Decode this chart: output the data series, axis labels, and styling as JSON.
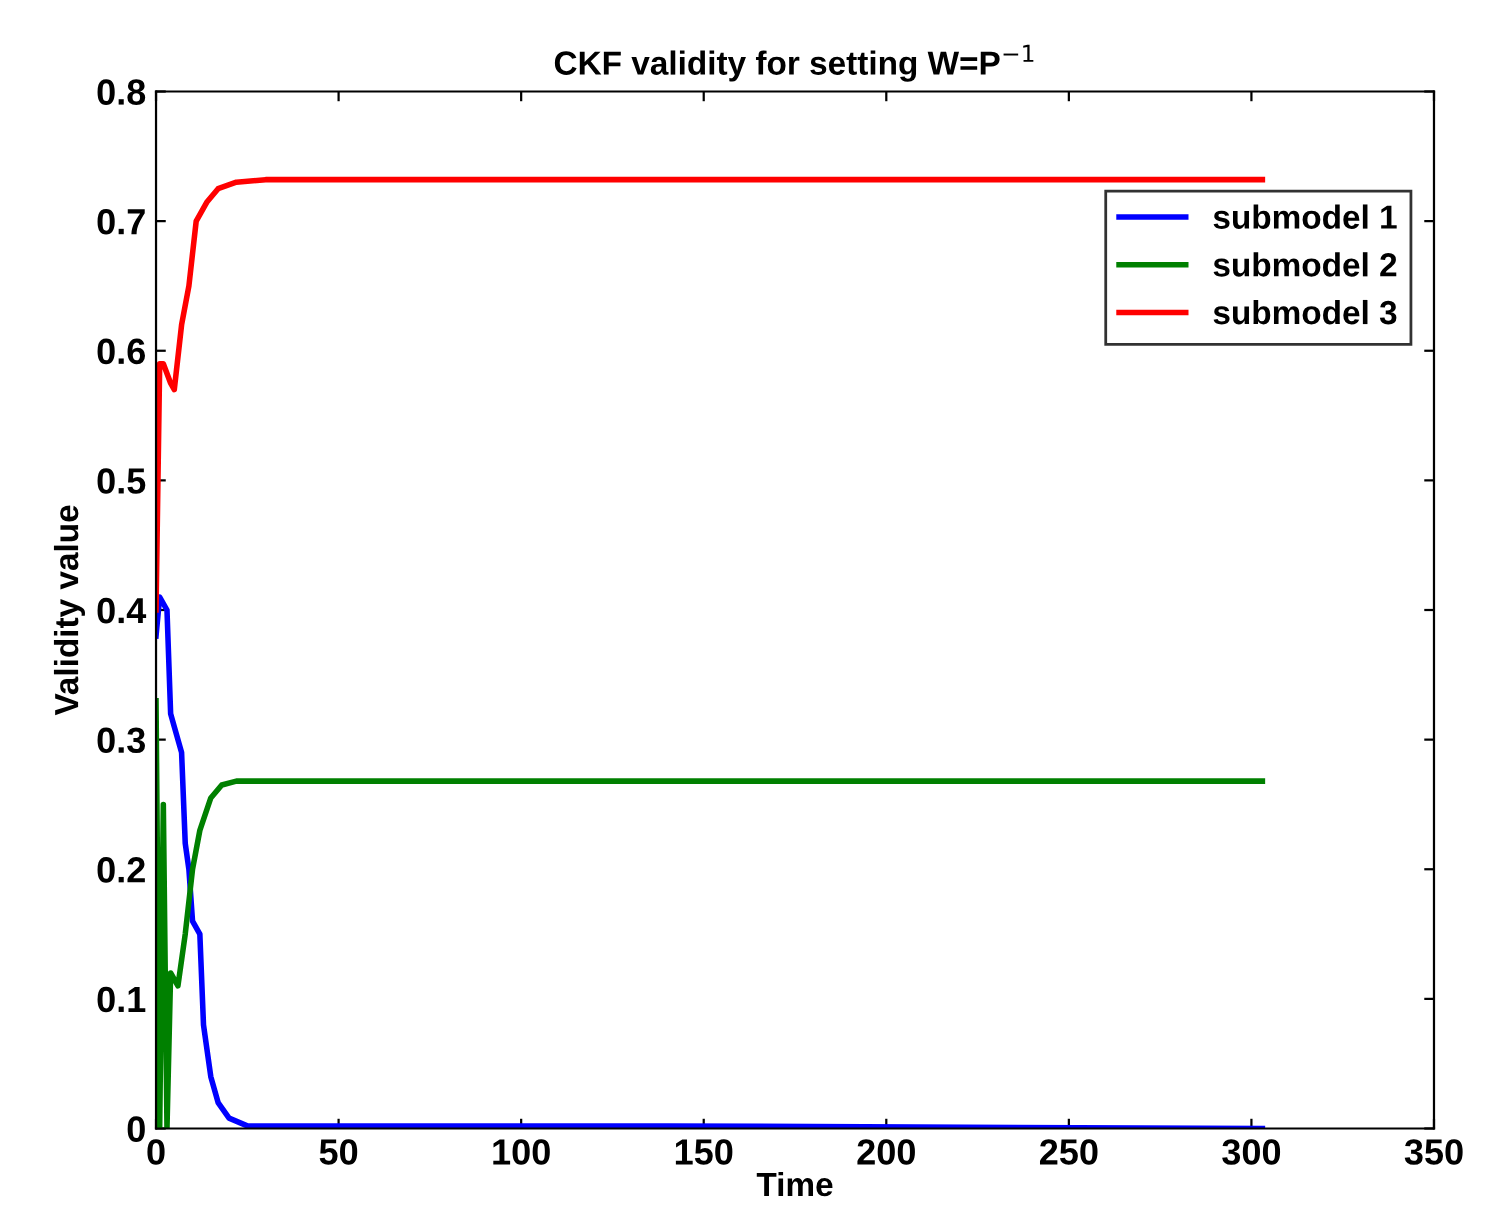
{
  "chart_data": {
    "type": "line",
    "title": "CKF validity for setting W=P$^{−1}$",
    "xlabel": "Time",
    "ylabel": "Validity value",
    "xlim": [
      0,
      350
    ],
    "xticks": [
      0,
      50,
      100,
      150,
      200,
      250,
      300,
      350
    ],
    "ylim": [
      0,
      0.8
    ],
    "yticks": [
      0,
      0.1,
      0.2,
      0.3,
      0.4,
      0.5,
      0.6,
      0.7,
      0.8
    ],
    "grid": false,
    "legend": "top right",
    "series": [
      {
        "name": "submodel 1",
        "color": "#0000ff",
        "x": [
          0,
          1,
          3,
          4,
          5,
          7,
          8,
          9,
          10,
          12,
          13,
          15,
          17,
          20,
          25,
          140,
          303
        ],
        "values": [
          0.38,
          0.41,
          0.4,
          0.32,
          0.31,
          0.29,
          0.22,
          0.2,
          0.16,
          0.15,
          0.08,
          0.04,
          0.02,
          0.008,
          0.002,
          0.002,
          0.0
        ]
      },
      {
        "name": "submodel 2",
        "color": "#008000",
        "x": [
          0,
          1,
          2,
          3,
          4,
          6,
          8,
          10,
          12,
          15,
          18,
          22,
          303
        ],
        "values": [
          0.33,
          0.0,
          0.25,
          0.0,
          0.12,
          0.11,
          0.15,
          0.2,
          0.23,
          0.255,
          0.265,
          0.268,
          0.268
        ]
      },
      {
        "name": "submodel 3",
        "color": "#ff0000",
        "x": [
          0,
          1,
          2,
          4,
          5,
          7,
          9,
          11,
          14,
          17,
          22,
          30,
          303
        ],
        "values": [
          0.4,
          0.59,
          0.59,
          0.575,
          0.57,
          0.62,
          0.65,
          0.7,
          0.715,
          0.725,
          0.73,
          0.732,
          0.732
        ]
      }
    ]
  }
}
